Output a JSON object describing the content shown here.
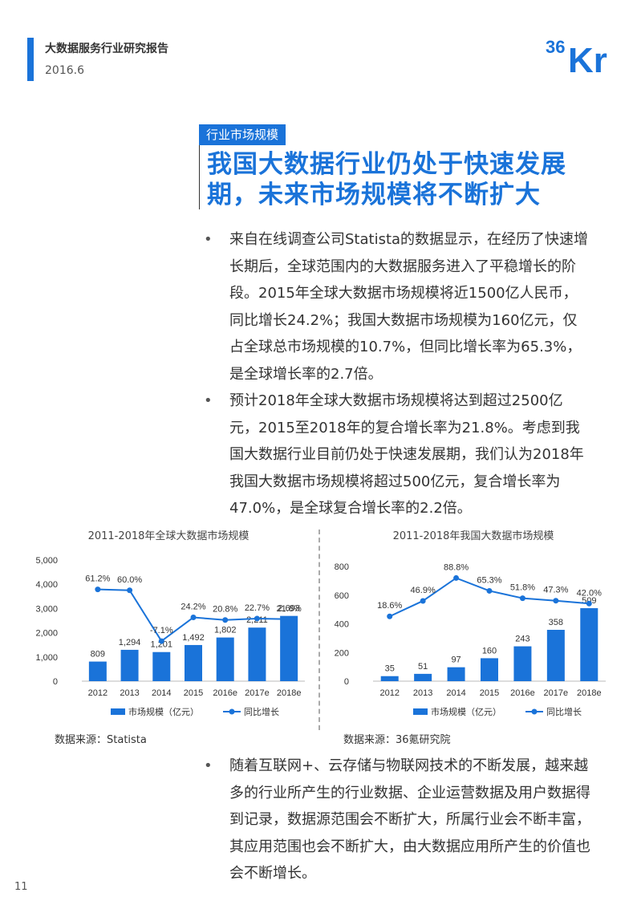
{
  "header": {
    "report_title": "大数据服务行业研究报告",
    "date": "2016.6",
    "logo_text_36": "36",
    "logo_text_kr": "Kr"
  },
  "section": {
    "tag": "行业市场规模",
    "headline_line1": "我国大数据行业仍处于快速发展",
    "headline_line2": "期，未来市场规模将不断扩大"
  },
  "bullets_top": [
    "来自在线调查公司Statista的数据显示，在经历了快速增长期后，全球范围内的大数据服务进入了平稳增长的阶段。2015年全球大数据市场规模将近1500亿人民币，同比增长24.2%；我国大数据市场规模为160亿元，仅占全球总市场规模的10.7%，但同比增长率为65.3%，是全球增长率的2.7倍。",
    "预计2018年全球大数据市场规模将达到超过2500亿元，2015至2018年的复合增长率为21.8%。考虑到我国大数据行业目前仍处于快速发展期，我们认为2018年我国大数据市场规模将超过500亿元，复合增长率为47.0%，是全球复合增长率的2.2倍。"
  ],
  "bullets_bottom": [
    "随着互联网+、云存储与物联网技术的不断发展，越来越多的行业所产生的行业数据、企业运营数据及用户数据得到记录，数据源范围会不断扩大，所属行业会不断丰富，其应用范围也会不断扩大，由大数据应用所产生的价值也会不断增长。"
  ],
  "chart_data": [
    {
      "type": "bar",
      "title": "2011-2018年全球大数据市场规模",
      "categories": [
        "2012",
        "2013",
        "2014",
        "2015",
        "2016e",
        "2017e",
        "2018e"
      ],
      "series": [
        {
          "name": "市场规模（亿元）",
          "type": "bar",
          "values": [
            809,
            1294,
            1201,
            1492,
            1802,
            2211,
            2693
          ],
          "labels": [
            "809",
            "1,294",
            "1,201",
            "1,492",
            "1,802",
            "2,211",
            "2,693"
          ]
        },
        {
          "name": "同比增长",
          "type": "line",
          "values": [
            61.2,
            60.0,
            -7.1,
            24.2,
            20.8,
            22.7,
            21.8
          ],
          "labels": [
            "61.2%",
            "60.0%",
            "-7.1%",
            "24.2%",
            "20.8%",
            "22.7%",
            "21.8%"
          ]
        }
      ],
      "ylim": [
        0,
        5000
      ],
      "yticks": [
        "0",
        "1,000",
        "2,000",
        "3,000",
        "4,000",
        "5,000"
      ],
      "line_ylim": [
        -60,
        100
      ],
      "legend_position": "bottom",
      "source": "数据来源：Statista"
    },
    {
      "type": "bar",
      "title": "2011-2018年我国大数据市场规模",
      "categories": [
        "2012",
        "2013",
        "2014",
        "2015",
        "2016e",
        "2017e",
        "2018e"
      ],
      "series": [
        {
          "name": "市场规模（亿元）",
          "type": "bar",
          "values": [
            35,
            51,
            97,
            160,
            243,
            358,
            509
          ],
          "labels": [
            "35",
            "51",
            "97",
            "160",
            "243",
            "358",
            "509"
          ]
        },
        {
          "name": "同比增长",
          "type": "line",
          "values": [
            18.6,
            46.9,
            88.8,
            65.3,
            51.8,
            47.3,
            42.0
          ],
          "labels": [
            "18.6%",
            "46.9%",
            "88.8%",
            "65.3%",
            "51.8%",
            "47.3%",
            "42.0%"
          ]
        }
      ],
      "ylim": [
        0,
        800
      ],
      "yticks": [
        "0",
        "200",
        "400",
        "600",
        "800"
      ],
      "line_ylim": [
        -100,
        110
      ],
      "legend_position": "bottom",
      "source": "数据来源：36氪研究院"
    }
  ],
  "page_number": "11",
  "colors": {
    "accent": "#1a73d9",
    "bar": "#1a73d9",
    "line": "#1a73d9",
    "text": "#333333"
  }
}
